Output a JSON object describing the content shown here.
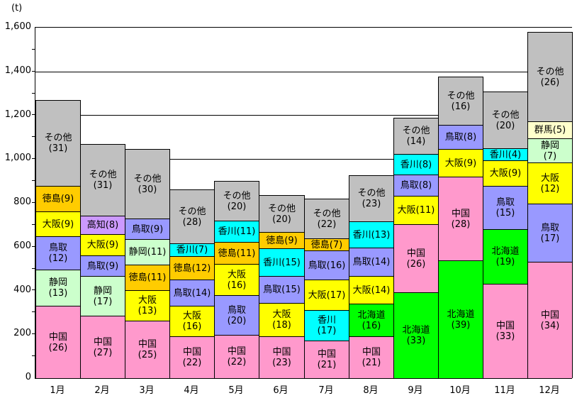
{
  "unit_label": "(t)",
  "colors": {
    "中国": "#FF99CC",
    "静岡": "#CCFFCC",
    "鳥取": "#9999FF",
    "大阪": "#FFFF00",
    "徳島": "#FFCC00",
    "高知": "#CC99FF",
    "香川": "#00FFFF",
    "北海道": "#00FF00",
    "群馬": "#FFFFCC",
    "その他": "#C0C0C0"
  },
  "chart_data": {
    "type": "bar",
    "stacked": true,
    "title": "",
    "xlabel": "",
    "ylabel": "(t)",
    "ylim": [
      0,
      1600
    ],
    "grid": true,
    "gridline_interval": 200,
    "minor_tick_interval": 100,
    "legend": "none (segments labeled in-bar as 産地名(％))",
    "y_axis_ticks": [
      "0",
      "200",
      "400",
      "600",
      "800",
      "1,000",
      "1,200",
      "1,400",
      "1,600"
    ],
    "categories": [
      "1月",
      "2月",
      "3月",
      "4月",
      "5月",
      "6月",
      "7月",
      "8月",
      "9月",
      "10月",
      "11月",
      "12月"
    ],
    "totals_t": [
      1270,
      1070,
      1045,
      860,
      900,
      835,
      820,
      925,
      1190,
      1375,
      1310,
      1580
    ],
    "months": [
      {
        "label": "1月",
        "total_t": 1270,
        "segments": [
          {
            "name": "中国",
            "pct": 26,
            "two_line": true
          },
          {
            "name": "静岡",
            "pct": 13,
            "two_line": true
          },
          {
            "name": "鳥取",
            "pct": 12,
            "two_line": true
          },
          {
            "name": "大阪",
            "pct": 9,
            "two_line": false
          },
          {
            "name": "徳島",
            "pct": 9,
            "two_line": false
          },
          {
            "name": "その他",
            "pct": 31,
            "two_line": true
          }
        ]
      },
      {
        "label": "2月",
        "total_t": 1070,
        "segments": [
          {
            "name": "中国",
            "pct": 27,
            "two_line": true
          },
          {
            "name": "静岡",
            "pct": 17,
            "two_line": true
          },
          {
            "name": "鳥取",
            "pct": 9,
            "two_line": false
          },
          {
            "name": "大阪",
            "pct": 9,
            "two_line": false
          },
          {
            "name": "高知",
            "pct": 8,
            "two_line": false
          },
          {
            "name": "その他",
            "pct": 31,
            "two_line": true
          }
        ]
      },
      {
        "label": "3月",
        "total_t": 1045,
        "segments": [
          {
            "name": "中国",
            "pct": 25,
            "two_line": true
          },
          {
            "name": "大阪",
            "pct": 13,
            "two_line": true
          },
          {
            "name": "徳島",
            "pct": 11,
            "two_line": false
          },
          {
            "name": "静岡",
            "pct": 11,
            "two_line": false
          },
          {
            "name": "鳥取",
            "pct": 9,
            "two_line": false
          },
          {
            "name": "その他",
            "pct": 30,
            "two_line": true
          }
        ]
      },
      {
        "label": "4月",
        "total_t": 860,
        "segments": [
          {
            "name": "中国",
            "pct": 22,
            "two_line": true
          },
          {
            "name": "大阪",
            "pct": 16,
            "two_line": true
          },
          {
            "name": "鳥取",
            "pct": 14,
            "two_line": false
          },
          {
            "name": "徳島",
            "pct": 12,
            "two_line": false
          },
          {
            "name": "香川",
            "pct": 7,
            "two_line": false
          },
          {
            "name": "その他",
            "pct": 28,
            "two_line": true
          }
        ]
      },
      {
        "label": "5月",
        "total_t": 900,
        "segments": [
          {
            "name": "中国",
            "pct": 22,
            "two_line": true
          },
          {
            "name": "鳥取",
            "pct": 20,
            "two_line": true
          },
          {
            "name": "大阪",
            "pct": 16,
            "two_line": true
          },
          {
            "name": "徳島",
            "pct": 11,
            "two_line": false
          },
          {
            "name": "香川",
            "pct": 11,
            "two_line": false
          },
          {
            "name": "その他",
            "pct": 20,
            "two_line": true
          }
        ]
      },
      {
        "label": "6月",
        "total_t": 835,
        "segments": [
          {
            "name": "中国",
            "pct": 23,
            "two_line": true
          },
          {
            "name": "大阪",
            "pct": 18,
            "two_line": true
          },
          {
            "name": "鳥取",
            "pct": 15,
            "two_line": false
          },
          {
            "name": "香川",
            "pct": 15,
            "two_line": false
          },
          {
            "name": "徳島",
            "pct": 9,
            "two_line": false
          },
          {
            "name": "その他",
            "pct": 20,
            "two_line": true
          }
        ]
      },
      {
        "label": "7月",
        "total_t": 820,
        "segments": [
          {
            "name": "中国",
            "pct": 21,
            "two_line": true
          },
          {
            "name": "香川",
            "pct": 17,
            "two_line": true
          },
          {
            "name": "大阪",
            "pct": 17,
            "two_line": false
          },
          {
            "name": "鳥取",
            "pct": 16,
            "two_line": false
          },
          {
            "name": "徳島",
            "pct": 7,
            "two_line": false
          },
          {
            "name": "その他",
            "pct": 22,
            "two_line": true
          }
        ]
      },
      {
        "label": "8月",
        "total_t": 925,
        "segments": [
          {
            "name": "中国",
            "pct": 21,
            "two_line": true
          },
          {
            "name": "北海道",
            "pct": 16,
            "two_line": true
          },
          {
            "name": "大阪",
            "pct": 14,
            "two_line": false
          },
          {
            "name": "鳥取",
            "pct": 14,
            "two_line": false
          },
          {
            "name": "香川",
            "pct": 13,
            "two_line": false
          },
          {
            "name": "その他",
            "pct": 23,
            "two_line": true
          }
        ]
      },
      {
        "label": "9月",
        "total_t": 1190,
        "segments": [
          {
            "name": "北海道",
            "pct": 33,
            "two_line": true
          },
          {
            "name": "中国",
            "pct": 26,
            "two_line": true
          },
          {
            "name": "大阪",
            "pct": 11,
            "two_line": false
          },
          {
            "name": "鳥取",
            "pct": 8,
            "two_line": false
          },
          {
            "name": "香川",
            "pct": 8,
            "two_line": false
          },
          {
            "name": "その他",
            "pct": 14,
            "two_line": true
          }
        ]
      },
      {
        "label": "10月",
        "total_t": 1375,
        "segments": [
          {
            "name": "北海道",
            "pct": 39,
            "two_line": true
          },
          {
            "name": "中国",
            "pct": 28,
            "two_line": true
          },
          {
            "name": "大阪",
            "pct": 9,
            "two_line": false
          },
          {
            "name": "鳥取",
            "pct": 8,
            "two_line": false
          },
          {
            "name": "その他",
            "pct": 16,
            "two_line": true
          }
        ]
      },
      {
        "label": "11月",
        "total_t": 1310,
        "segments": [
          {
            "name": "中国",
            "pct": 33,
            "two_line": true
          },
          {
            "name": "北海道",
            "pct": 19,
            "two_line": true
          },
          {
            "name": "鳥取",
            "pct": 15,
            "two_line": true
          },
          {
            "name": "大阪",
            "pct": 9,
            "two_line": false
          },
          {
            "name": "香川",
            "pct": 4,
            "two_line": false
          },
          {
            "name": "その他",
            "pct": 20,
            "two_line": true
          }
        ]
      },
      {
        "label": "12月",
        "total_t": 1580,
        "segments": [
          {
            "name": "中国",
            "pct": 34,
            "two_line": true
          },
          {
            "name": "鳥取",
            "pct": 17,
            "two_line": true
          },
          {
            "name": "大阪",
            "pct": 12,
            "two_line": true
          },
          {
            "name": "静岡",
            "pct": 7,
            "two_line": true
          },
          {
            "name": "群馬",
            "pct": 5,
            "two_line": false
          },
          {
            "name": "その他",
            "pct": 26,
            "two_line": true
          }
        ]
      }
    ]
  }
}
